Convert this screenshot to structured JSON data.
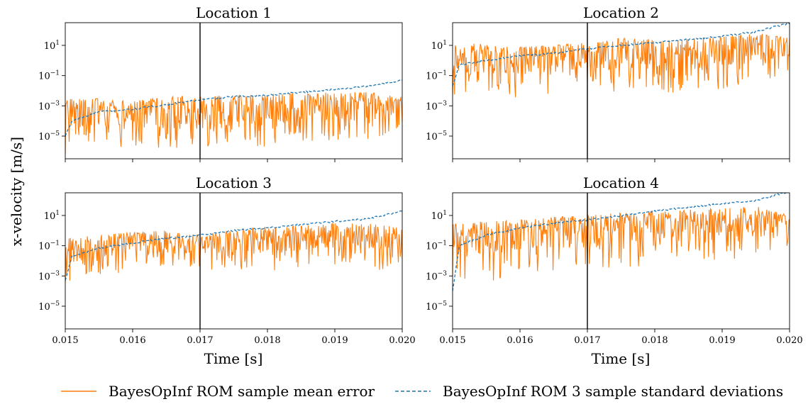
{
  "figure": {
    "ylabel": "x-velocity [m/s]",
    "xlabel": "Time [s]",
    "legend": [
      {
        "label": "BayesOpInf ROM sample mean error",
        "color": "#ff7f0e",
        "style": "solid"
      },
      {
        "label": "BayesOpInf ROM 3 sample standard deviations",
        "color": "#1f77b4",
        "style": "dashed"
      }
    ]
  },
  "chart_data": [
    {
      "type": "line",
      "title": "Location 1",
      "xlim": [
        0.015,
        0.02
      ],
      "ylim_log10": [
        -6.5,
        2.5
      ],
      "yscale": "log",
      "vline_x": 0.017,
      "grid": false,
      "xticks": [
        "0.015",
        "0.016",
        "0.017",
        "0.018",
        "0.019",
        "0.020"
      ],
      "yticks_exp": [
        1,
        -1,
        -3,
        -5
      ],
      "series": [
        {
          "name": "BayesOpInf ROM sample mean error",
          "color": "#ff7f0e",
          "style": "solid",
          "x": [
            0.015,
            0.0155,
            0.016,
            0.0165,
            0.017,
            0.0175,
            0.018,
            0.0185,
            0.019,
            0.0195,
            0.02
          ],
          "y": [
            0.003,
            0.003,
            0.002,
            0.004,
            0.005,
            0.005,
            0.006,
            0.007,
            0.008,
            0.008,
            0.004
          ],
          "y_dips": [
            6e-07,
            2e-06,
            1e-06,
            2e-06,
            1e-06,
            1e-06,
            2e-06,
            3e-06,
            4e-06,
            5e-06,
            3e-05
          ]
        },
        {
          "name": "BayesOpInf ROM 3 sample standard deviations",
          "color": "#1f77b4",
          "style": "dashed",
          "x": [
            0.015,
            0.0151,
            0.0155,
            0.016,
            0.0165,
            0.017,
            0.0175,
            0.018,
            0.0185,
            0.019,
            0.0195,
            0.02
          ],
          "y": [
            1e-05,
            0.0001,
            0.0004,
            0.0006,
            0.0012,
            0.0025,
            0.004,
            0.005,
            0.008,
            0.012,
            0.02,
            0.05
          ]
        }
      ]
    },
    {
      "type": "line",
      "title": "Location 2",
      "xlim": [
        0.015,
        0.02
      ],
      "ylim_log10": [
        -6.5,
        2.5
      ],
      "yscale": "log",
      "vline_x": 0.017,
      "grid": false,
      "xticks": [
        "0.015",
        "0.016",
        "0.017",
        "0.018",
        "0.019",
        "0.020"
      ],
      "yticks_exp": [
        1,
        -1,
        -3,
        -5
      ],
      "series": [
        {
          "name": "BayesOpInf ROM sample mean error",
          "color": "#ff7f0e",
          "style": "solid",
          "x": [
            0.015,
            0.0155,
            0.016,
            0.0165,
            0.017,
            0.0175,
            0.018,
            0.0185,
            0.019,
            0.0195,
            0.02
          ],
          "y": [
            10,
            15,
            8,
            10,
            15,
            30,
            25,
            30,
            40,
            60,
            30
          ],
          "y_dips": [
            0.005,
            0.003,
            0.003,
            0.005,
            0.01,
            0.005,
            0.005,
            0.01,
            0.01,
            0.02,
            0.2
          ]
        },
        {
          "name": "BayesOpInf ROM 3 sample standard deviations",
          "color": "#1f77b4",
          "style": "dashed",
          "x": [
            0.015,
            0.0151,
            0.0155,
            0.016,
            0.0165,
            0.017,
            0.0175,
            0.018,
            0.0185,
            0.019,
            0.0195,
            0.02
          ],
          "y": [
            0.02,
            0.5,
            1,
            2,
            3,
            6,
            10,
            15,
            25,
            40,
            80,
            300
          ]
        }
      ]
    },
    {
      "type": "line",
      "title": "Location 3",
      "xlim": [
        0.015,
        0.02
      ],
      "ylim_log10": [
        -6.5,
        2.5
      ],
      "yscale": "log",
      "vline_x": 0.017,
      "grid": false,
      "xticks": [
        "0.015",
        "0.016",
        "0.017",
        "0.018",
        "0.019",
        "0.020"
      ],
      "yticks_exp": [
        1,
        -1,
        -3,
        -5
      ],
      "series": [
        {
          "name": "BayesOpInf ROM sample mean error",
          "color": "#ff7f0e",
          "style": "solid",
          "x": [
            0.015,
            0.0155,
            0.016,
            0.0165,
            0.017,
            0.0175,
            0.018,
            0.0185,
            0.019,
            0.0195,
            0.02
          ],
          "y": [
            0.3,
            0.5,
            0.8,
            1,
            0.5,
            1,
            2,
            2,
            3,
            3,
            1.5
          ],
          "y_dips": [
            0.0003,
            0.001,
            0.002,
            0.003,
            0.003,
            0.002,
            0.002,
            0.003,
            0.004,
            0.003,
            0.001
          ]
        },
        {
          "name": "BayesOpInf ROM 3 sample standard deviations",
          "color": "#1f77b4",
          "style": "dashed",
          "x": [
            0.015,
            0.0151,
            0.0155,
            0.016,
            0.0165,
            0.017,
            0.0175,
            0.018,
            0.0185,
            0.019,
            0.0195,
            0.02
          ],
          "y": [
            0.0005,
            0.02,
            0.07,
            0.15,
            0.3,
            0.5,
            1,
            1.5,
            2.5,
            4,
            6,
            20
          ]
        }
      ]
    },
    {
      "type": "line",
      "title": "Location 4",
      "xlim": [
        0.015,
        0.02
      ],
      "ylim_log10": [
        -6.5,
        2.5
      ],
      "yscale": "log",
      "vline_x": 0.017,
      "grid": false,
      "xticks": [
        "0.015",
        "0.016",
        "0.017",
        "0.018",
        "0.019",
        "0.020"
      ],
      "yticks_exp": [
        1,
        -1,
        -3,
        -5
      ],
      "series": [
        {
          "name": "BayesOpInf ROM sample mean error",
          "color": "#ff7f0e",
          "style": "solid",
          "x": [
            0.015,
            0.0155,
            0.016,
            0.0165,
            0.017,
            0.0175,
            0.018,
            0.0185,
            0.019,
            0.0195,
            0.02
          ],
          "y": [
            3,
            4,
            5,
            8,
            10,
            15,
            20,
            25,
            30,
            40,
            10
          ],
          "y_dips": [
            0.001,
            0.0003,
            0.001,
            0.002,
            0.003,
            0.003,
            0.005,
            0.01,
            0.01,
            0.02,
            0.05
          ]
        },
        {
          "name": "BayesOpInf ROM 3 sample standard deviations",
          "color": "#1f77b4",
          "style": "dashed",
          "x": [
            0.015,
            0.0151,
            0.0155,
            0.016,
            0.0165,
            0.017,
            0.0175,
            0.018,
            0.0185,
            0.019,
            0.0195,
            0.02
          ],
          "y": [
            0.0001,
            0.1,
            0.5,
            1.5,
            3,
            5,
            10,
            20,
            35,
            60,
            100,
            400
          ]
        }
      ]
    }
  ]
}
